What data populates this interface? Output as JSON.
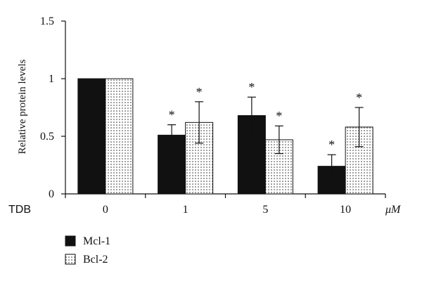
{
  "chart_data": {
    "type": "bar",
    "title": "",
    "xlabel_prefix": "TDB",
    "x_unit": "μM",
    "ylabel": "Relative protein levels",
    "categories": [
      "0",
      "1",
      "5",
      "10"
    ],
    "ylim": [
      0,
      1.5
    ],
    "yticks": [
      0,
      0.5,
      1,
      1.5
    ],
    "ytick_labels": [
      "0",
      "0.5",
      "1",
      "1.5"
    ],
    "series": [
      {
        "name": "Mcl-1",
        "fill": "#111111",
        "pattern": "solid",
        "values": [
          1.0,
          0.51,
          0.68,
          0.24
        ],
        "errors": [
          0,
          0.09,
          0.16,
          0.1
        ],
        "significant": [
          false,
          true,
          true,
          true
        ]
      },
      {
        "name": "Bcl-2",
        "fill": "#ffffff",
        "pattern": "dotted",
        "values": [
          1.0,
          0.62,
          0.47,
          0.58
        ],
        "errors": [
          0,
          0.18,
          0.12,
          0.17
        ],
        "significant": [
          false,
          true,
          true,
          true
        ]
      }
    ],
    "significance_marker": "*",
    "legend_position": "bottom-left",
    "grid": false
  }
}
